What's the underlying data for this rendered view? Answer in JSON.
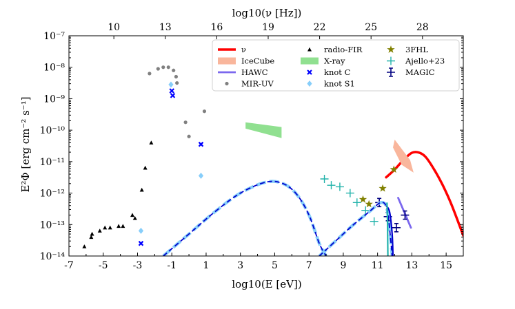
{
  "chart_data": {
    "type": "scatter",
    "title": "",
    "xlabel": "log10(E [eV])",
    "ylabel": "E²Φ [erg cm⁻² s⁻¹]",
    "top_xlabel": "log10(ν [Hz])",
    "xlim": [
      -7,
      16
    ],
    "ylim_log10": [
      -14,
      -7
    ],
    "x_ticks": [
      -7,
      -5,
      -3,
      -1,
      1,
      3,
      5,
      7,
      9,
      11,
      13,
      15
    ],
    "x_tick_labels": [
      "-7",
      "-5",
      "-3",
      "-1",
      "1",
      "3",
      "5",
      "7",
      "9",
      "11",
      "13",
      "15"
    ],
    "y_ticks_log10": [
      -14,
      -13,
      -12,
      -11,
      -10,
      -9,
      -8,
      -7
    ],
    "y_tick_labels": [
      "10⁻¹⁴",
      "10⁻¹³",
      "10⁻¹²",
      "10⁻¹¹",
      "10⁻¹⁰",
      "10⁻⁹",
      "10⁻⁸",
      "10⁻⁷"
    ],
    "top_ticks": [
      10,
      13,
      16,
      19,
      22,
      25,
      28
    ],
    "top_tick_labels": [
      "10",
      "13",
      "16",
      "19",
      "22",
      "25",
      "28"
    ],
    "top_axis_offset": 14.38,
    "legend_position": "top-right",
    "series": [
      {
        "name": "ν",
        "kind": "line",
        "color": "#ff0000",
        "points": [
          [
            11.5,
            -11.5
          ],
          [
            12.0,
            -11.25
          ],
          [
            12.5,
            -10.95
          ],
          [
            13.0,
            -10.72
          ],
          [
            13.4,
            -10.71
          ],
          [
            13.8,
            -10.85
          ],
          [
            14.3,
            -11.25
          ],
          [
            14.8,
            -11.75
          ],
          [
            15.3,
            -12.35
          ],
          [
            16.0,
            -13.35
          ]
        ]
      },
      {
        "name": "IceCube",
        "kind": "band",
        "color": "#f9b69c",
        "points": [
          [
            12.0,
            -10.3
          ],
          [
            12.9,
            -10.95
          ],
          [
            13.1,
            -11.35
          ],
          [
            12.4,
            -11.1
          ],
          [
            11.9,
            -10.55
          ]
        ]
      },
      {
        "name": "HAWC",
        "kind": "line",
        "color": "#7b68ee",
        "points": [
          [
            12.2,
            -12.15
          ],
          [
            12.95,
            -13.1
          ]
        ]
      },
      {
        "name": "MIR-UV",
        "kind": "points",
        "color": "#808080",
        "points": [
          [
            -2.3,
            -8.2
          ],
          [
            -1.8,
            -8.05
          ],
          [
            -1.5,
            -8.0
          ],
          [
            -1.2,
            -8.0
          ],
          [
            -0.9,
            -8.1
          ],
          [
            -0.75,
            -8.3
          ],
          [
            -0.7,
            -8.5
          ],
          [
            -0.2,
            -9.75
          ],
          [
            0.0,
            -10.2
          ],
          [
            0.9,
            -9.4
          ]
        ]
      },
      {
        "name": "radio-FIR",
        "kind": "points",
        "color": "#000000",
        "points": [
          [
            -6.1,
            -13.7
          ],
          [
            -5.7,
            -13.4
          ],
          [
            -5.65,
            -13.3
          ],
          [
            -5.2,
            -13.2
          ],
          [
            -4.9,
            -13.1
          ],
          [
            -4.6,
            -13.1
          ],
          [
            -4.1,
            -13.05
          ],
          [
            -3.85,
            -13.05
          ],
          [
            -3.3,
            -12.7
          ],
          [
            -3.15,
            -12.8
          ],
          [
            -2.75,
            -11.9
          ],
          [
            -2.55,
            -11.2
          ],
          [
            -2.2,
            -10.4
          ]
        ]
      },
      {
        "name": "X-ray",
        "kind": "band",
        "color": "#90e090",
        "points": [
          [
            3.3,
            -9.75
          ],
          [
            5.4,
            -9.9
          ],
          [
            5.4,
            -10.25
          ],
          [
            3.3,
            -9.95
          ]
        ]
      },
      {
        "name": "knot C",
        "kind": "points",
        "color": "#0000ff",
        "points": [
          [
            -2.8,
            -13.6
          ],
          [
            -1.0,
            -8.75
          ],
          [
            -0.95,
            -8.9
          ],
          [
            0.7,
            -10.45
          ]
        ]
      },
      {
        "name": "knot S1",
        "kind": "points",
        "color": "#87cefa",
        "points": [
          [
            -2.8,
            -13.2
          ],
          [
            -1.05,
            -8.55
          ],
          [
            0.7,
            -11.45
          ]
        ]
      },
      {
        "name": "3FHL",
        "kind": "errorbar",
        "color": "#808000",
        "points": [
          [
            10.15,
            -12.2
          ],
          [
            10.5,
            -12.35
          ],
          [
            11.3,
            -11.85
          ],
          [
            11.95,
            -11.25
          ]
        ]
      },
      {
        "name": "Ajello+23",
        "kind": "errorbar",
        "color": "#20b2aa",
        "points": [
          [
            7.9,
            -11.55
          ],
          [
            8.3,
            -11.75
          ],
          [
            8.8,
            -11.8
          ],
          [
            9.4,
            -12.0
          ],
          [
            9.8,
            -12.3
          ],
          [
            10.3,
            -12.55
          ],
          [
            10.8,
            -12.9
          ]
        ]
      },
      {
        "name": "MAGIC",
        "kind": "errorbar",
        "color": "#000080",
        "points": [
          [
            11.1,
            -12.3
          ],
          [
            11.6,
            -12.75
          ],
          [
            12.1,
            -13.1
          ],
          [
            12.6,
            -12.7
          ]
        ]
      },
      {
        "name": "model-sync-S1",
        "kind": "curve",
        "color": "#87cefa",
        "style": "dashed-thick",
        "points": [
          [
            -1.5,
            -14.0
          ],
          [
            0.0,
            -13.3
          ],
          [
            1.5,
            -12.6
          ],
          [
            3.0,
            -12.0
          ],
          [
            4.5,
            -11.65
          ],
          [
            5.5,
            -11.7
          ],
          [
            6.3,
            -12.05
          ],
          [
            7.0,
            -12.7
          ],
          [
            7.6,
            -13.6
          ],
          [
            8.0,
            -14.0
          ]
        ]
      },
      {
        "name": "model-sync-C",
        "kind": "curve",
        "color": "#0000cd",
        "style": "dashed",
        "points": [
          [
            -1.5,
            -14.0
          ],
          [
            0.0,
            -13.3
          ],
          [
            1.5,
            -12.6
          ],
          [
            3.0,
            -12.0
          ],
          [
            4.5,
            -11.65
          ],
          [
            5.5,
            -11.7
          ],
          [
            6.3,
            -12.05
          ],
          [
            7.0,
            -12.7
          ],
          [
            7.6,
            -13.6
          ],
          [
            8.0,
            -14.0
          ]
        ]
      },
      {
        "name": "model-ic-S1",
        "kind": "curve",
        "color": "#87cefa",
        "style": "dashed-thick",
        "points": [
          [
            7.6,
            -14.0
          ],
          [
            8.5,
            -13.55
          ],
          [
            9.5,
            -13.05
          ],
          [
            10.5,
            -12.6
          ],
          [
            11.2,
            -12.3
          ],
          [
            11.55,
            -12.5
          ],
          [
            11.75,
            -13.4
          ],
          [
            11.85,
            -14.0
          ]
        ]
      },
      {
        "name": "model-ic-C",
        "kind": "curve",
        "color": "#0000cd",
        "style": "dashed",
        "points": [
          [
            7.6,
            -14.0
          ],
          [
            8.5,
            -13.55
          ],
          [
            9.5,
            -13.05
          ],
          [
            10.5,
            -12.6
          ],
          [
            11.2,
            -12.3
          ],
          [
            11.55,
            -12.5
          ],
          [
            11.75,
            -13.4
          ],
          [
            11.85,
            -14.0
          ]
        ]
      },
      {
        "name": "model-cut-C",
        "kind": "curve",
        "color": "#0000cd",
        "style": "solid",
        "points": [
          [
            11.5,
            -12.4
          ],
          [
            11.7,
            -12.6
          ],
          [
            11.85,
            -13.3
          ],
          [
            11.9,
            -14.0
          ]
        ]
      },
      {
        "name": "model-cut-S1",
        "kind": "curve",
        "color": "#20b2aa",
        "style": "solid",
        "points": [
          [
            11.55,
            -12.3
          ],
          [
            11.58,
            -13.0
          ],
          [
            11.6,
            -14.0
          ]
        ]
      }
    ],
    "legend": [
      {
        "label": "ν",
        "kind": "line",
        "color": "#ff0000"
      },
      {
        "label": "IceCube",
        "kind": "band",
        "color": "#f9b69c"
      },
      {
        "label": "HAWC",
        "kind": "line",
        "color": "#7b68ee"
      },
      {
        "label": "MIR-UV",
        "kind": "dot",
        "color": "#808080"
      },
      {
        "label": "radio-FIR",
        "kind": "triangle",
        "color": "#000000"
      },
      {
        "label": "X-ray",
        "kind": "band",
        "color": "#90e090"
      },
      {
        "label": "knot C",
        "kind": "x",
        "color": "#0000ff"
      },
      {
        "label": "knot S1",
        "kind": "diamond",
        "color": "#87cefa"
      },
      {
        "label": "3FHL",
        "kind": "star",
        "color": "#808000"
      },
      {
        "label": "Ajello+23",
        "kind": "cross",
        "color": "#20b2aa"
      },
      {
        "label": "MAGIC",
        "kind": "errbar",
        "color": "#000080"
      }
    ]
  }
}
